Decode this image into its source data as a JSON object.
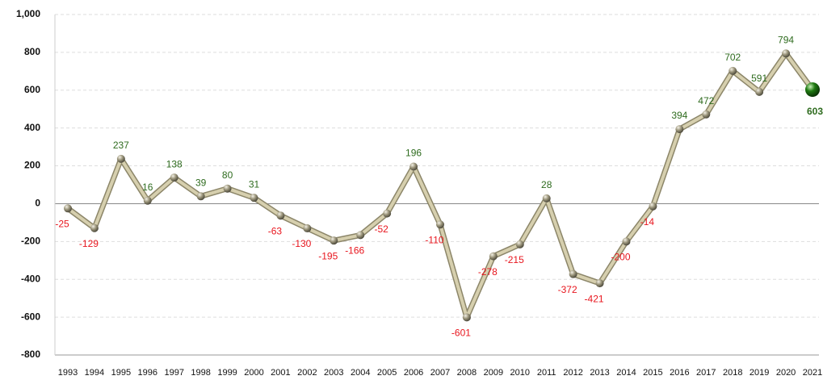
{
  "chart_data": {
    "type": "line",
    "categories": [
      "1993",
      "1994",
      "1995",
      "1996",
      "1997",
      "1998",
      "1999",
      "2000",
      "2001",
      "2002",
      "2003",
      "2004",
      "2005",
      "2006",
      "2007",
      "2008",
      "2009",
      "2010",
      "2011",
      "2012",
      "2013",
      "2014",
      "2015",
      "2016",
      "2017",
      "2018",
      "2019",
      "2020",
      "2021"
    ],
    "values": [
      -25,
      -129,
      237,
      16,
      138,
      39,
      80,
      31,
      -63,
      -130,
      -195,
      -166,
      -52,
      196,
      -110,
      -601,
      -278,
      -215,
      28,
      -372,
      -421,
      -200,
      -14,
      394,
      472,
      702,
      591,
      794,
      603
    ],
    "color": "#d6cfae",
    "positive_label_color": "#2e6b1e",
    "negative_label_color": "#e8161e",
    "highlight_color": "#1f7a12",
    "ylim": [
      -800,
      1000
    ],
    "yticks": [
      -800,
      -600,
      -400,
      -200,
      0,
      200,
      400,
      600,
      800,
      {
        "value": 1000,
        "label": "1,000"
      }
    ],
    "grid": true
  }
}
